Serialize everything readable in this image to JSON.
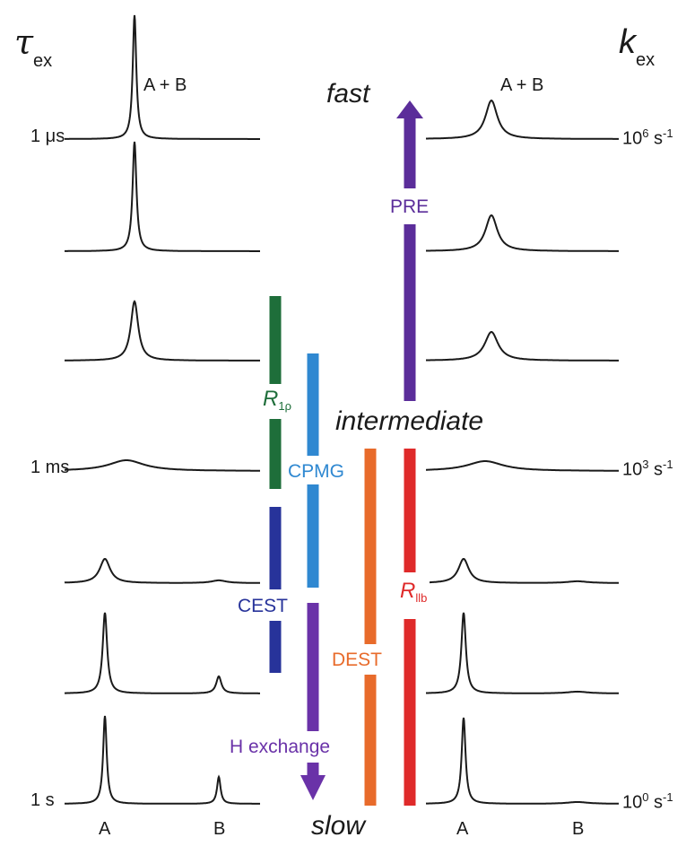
{
  "left_axis": {
    "symbol": "τ",
    "subscript": "ex",
    "labels": {
      "top": "1 μs",
      "middle": "1 ms",
      "bottom": "1 s"
    }
  },
  "right_axis": {
    "symbol": "k",
    "subscript": "ex",
    "labels": {
      "top": {
        "base": "10",
        "exp": "6",
        "unit": " s",
        "unit_exp": "-1"
      },
      "middle": {
        "base": "10",
        "exp": "3",
        "unit": " s",
        "unit_exp": "-1"
      },
      "bottom": {
        "base": "10",
        "exp": "0",
        "unit": " s",
        "unit_exp": "-1"
      }
    }
  },
  "regimes": {
    "fast": "fast",
    "intermediate": "intermediate",
    "slow": "slow"
  },
  "peak_labels": {
    "combined_left": "A + B",
    "combined_right": "A + B",
    "a_left": "A",
    "b_left": "B",
    "a_right": "A",
    "b_right": "B"
  },
  "methods": {
    "pre": {
      "label": "PRE",
      "color": "#5b2d9a"
    },
    "r1rho": {
      "symbol": "R",
      "sub": "1ρ",
      "color": "#1e6e3a"
    },
    "cpmg": {
      "label": "CPMG",
      "color": "#2f88d1"
    },
    "cest": {
      "label": "CEST",
      "color": "#27339a"
    },
    "dest": {
      "label": "DEST",
      "color": "#e86b2b"
    },
    "r2lb": {
      "symbol": "R",
      "sub": "llb",
      "color": "#df2a2a"
    },
    "h_exchange": {
      "label": "H exchange",
      "color": "#6a32a8"
    }
  },
  "line_color": "#1a1a1a"
}
